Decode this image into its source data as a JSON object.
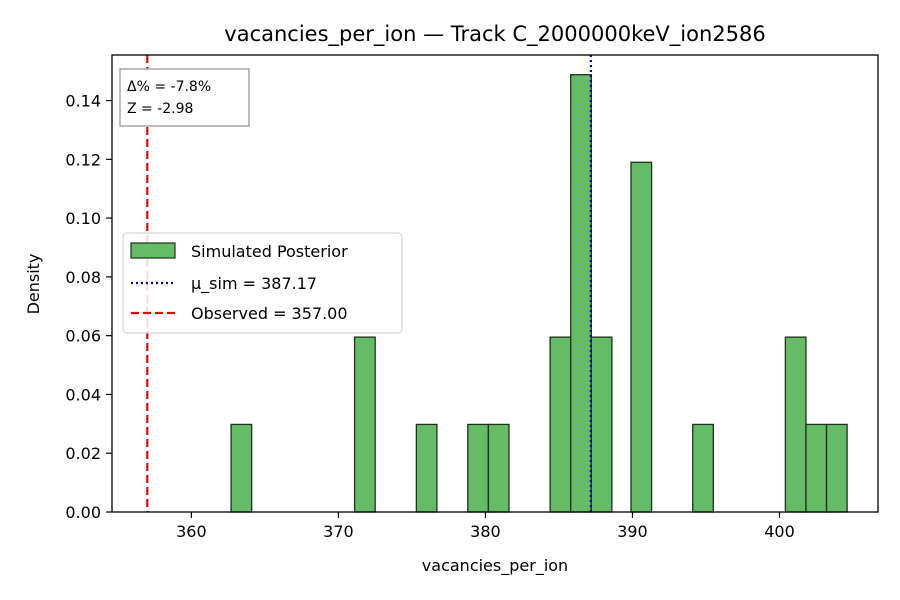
{
  "chart_data": {
    "type": "histogram",
    "title": "vacancies_per_ion — Track C_2000000keV_ion2586",
    "xlabel": "vacancies_per_ion",
    "ylabel": "Density",
    "xlim": [
      354.6,
      406.7
    ],
    "ylim": [
      0,
      0.1555
    ],
    "xticks": [
      360,
      370,
      380,
      390,
      400
    ],
    "yticks": [
      "0.00",
      "0.02",
      "0.04",
      "0.06",
      "0.08",
      "0.10",
      "0.12",
      "0.14"
    ],
    "bin_width": 1.4,
    "bars": [
      {
        "x0": 362.7,
        "density": 0.0298
      },
      {
        "x0": 371.1,
        "density": 0.0595
      },
      {
        "x0": 375.3,
        "density": 0.0298
      },
      {
        "x0": 378.8,
        "density": 0.0298
      },
      {
        "x0": 380.2,
        "density": 0.0298
      },
      {
        "x0": 384.4,
        "density": 0.0595
      },
      {
        "x0": 385.8,
        "density": 0.1488
      },
      {
        "x0": 387.2,
        "density": 0.0595
      },
      {
        "x0": 389.9,
        "density": 0.119
      },
      {
        "x0": 394.1,
        "density": 0.0298
      },
      {
        "x0": 400.4,
        "density": 0.0595
      },
      {
        "x0": 401.8,
        "density": 0.0298
      },
      {
        "x0": 403.2,
        "density": 0.0298
      }
    ],
    "bar_color": "#66bb66",
    "bar_edge_color": "#1a331a",
    "lines": [
      {
        "name": "μ_sim = 387.17",
        "x": 387.17,
        "style": "dotted",
        "color": "#0000cc"
      },
      {
        "name": "Observed = 357.00",
        "x": 357.0,
        "style": "dashed",
        "color": "#ee0000"
      }
    ],
    "legend": {
      "placement": "center-left",
      "entries": [
        "Simulated Posterior",
        "μ_sim = 387.17",
        "Observed = 357.00"
      ]
    },
    "stats_box": {
      "placement": "top-left",
      "lines": [
        "Δ% = -7.8%",
        "Z = -2.98"
      ]
    },
    "grid": false
  }
}
